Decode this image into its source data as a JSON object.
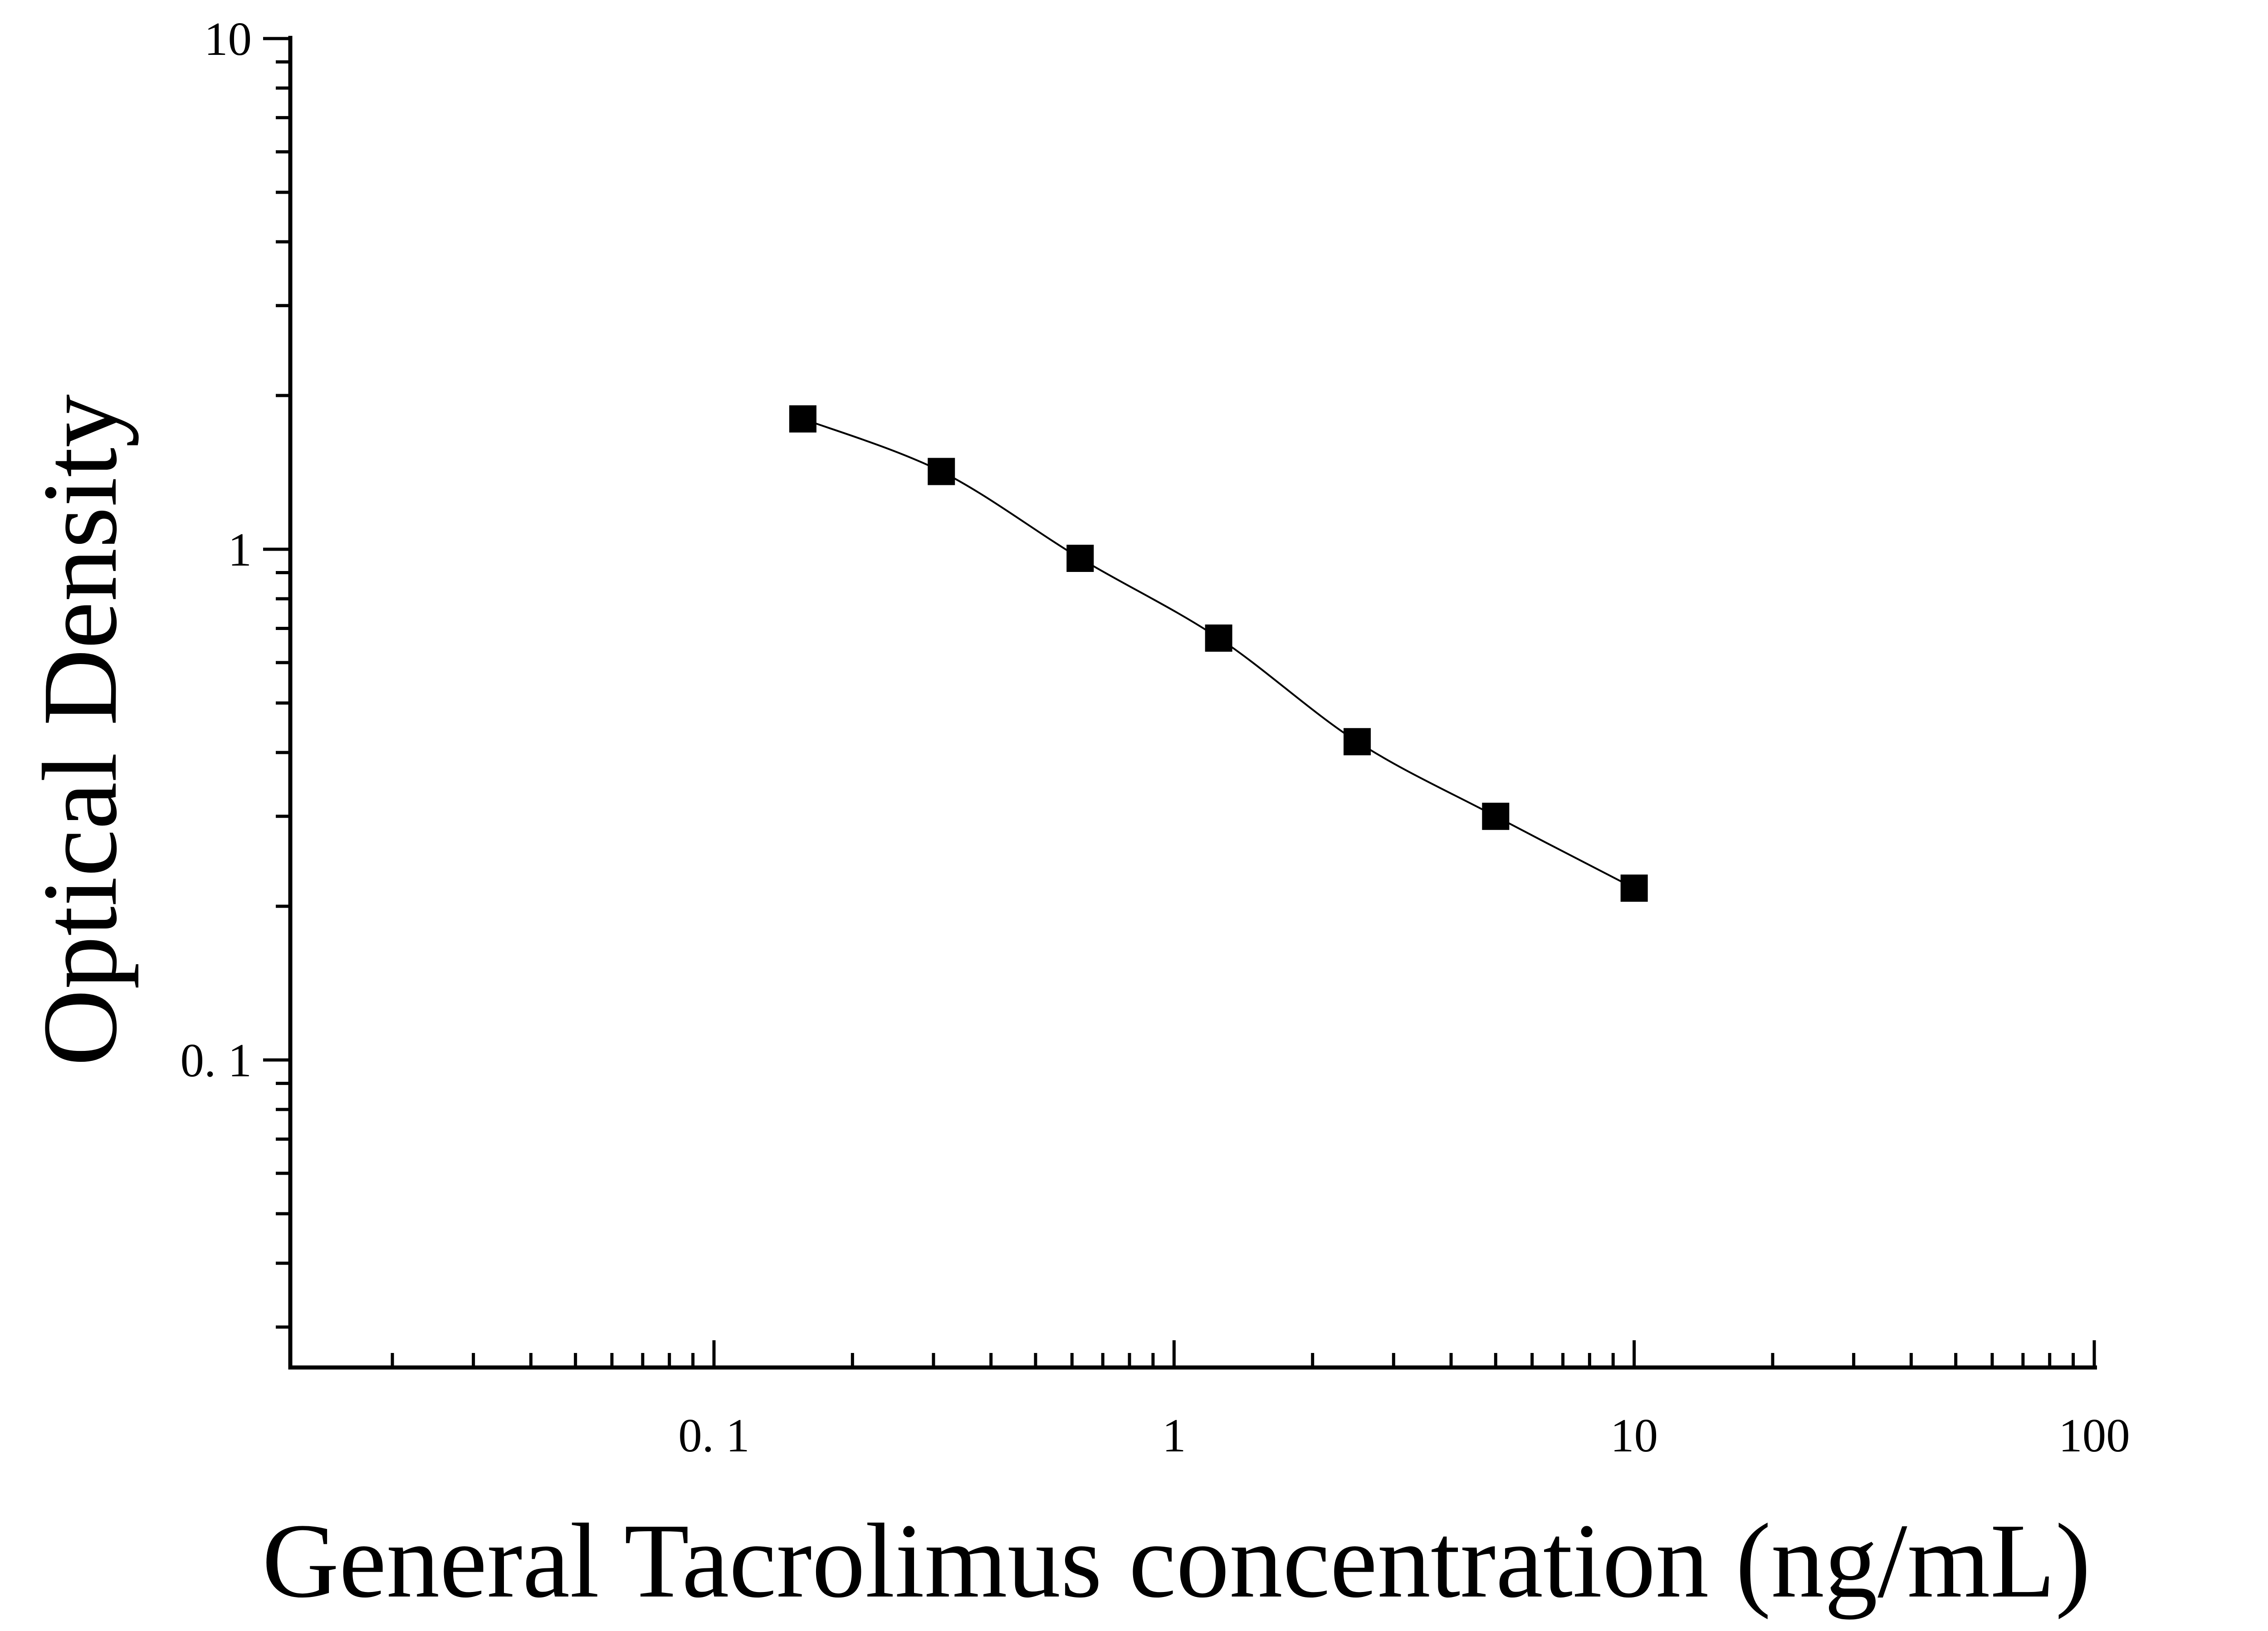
{
  "chart_data": {
    "type": "scatter",
    "title": "",
    "xlabel": "General Tacrolimus concentration (ng/mL)",
    "ylabel": "Optical Density",
    "x_scale": "log",
    "y_scale": "log",
    "xlim": [
      0.012,
      100
    ],
    "ylim": [
      0.025,
      10
    ],
    "grid": false,
    "legend": "none",
    "x_tick_labels": [
      {
        "value": 0.1,
        "label": "0. 1"
      },
      {
        "value": 1,
        "label": "1"
      },
      {
        "value": 10,
        "label": "10"
      },
      {
        "value": 100,
        "label": "100"
      }
    ],
    "y_tick_labels": [
      {
        "value": 10,
        "label": "10"
      },
      {
        "value": 1,
        "label": "1"
      },
      {
        "value": 0.1,
        "label": "0. 1"
      }
    ],
    "series": [
      {
        "x": [
          0.156,
          0.312,
          0.625,
          1.25,
          2.5,
          5,
          10
        ],
        "y": [
          1.8,
          1.42,
          0.96,
          0.67,
          0.42,
          0.3,
          0.217
        ],
        "marker": "square",
        "fit_line": true,
        "color": "#000000"
      }
    ]
  }
}
